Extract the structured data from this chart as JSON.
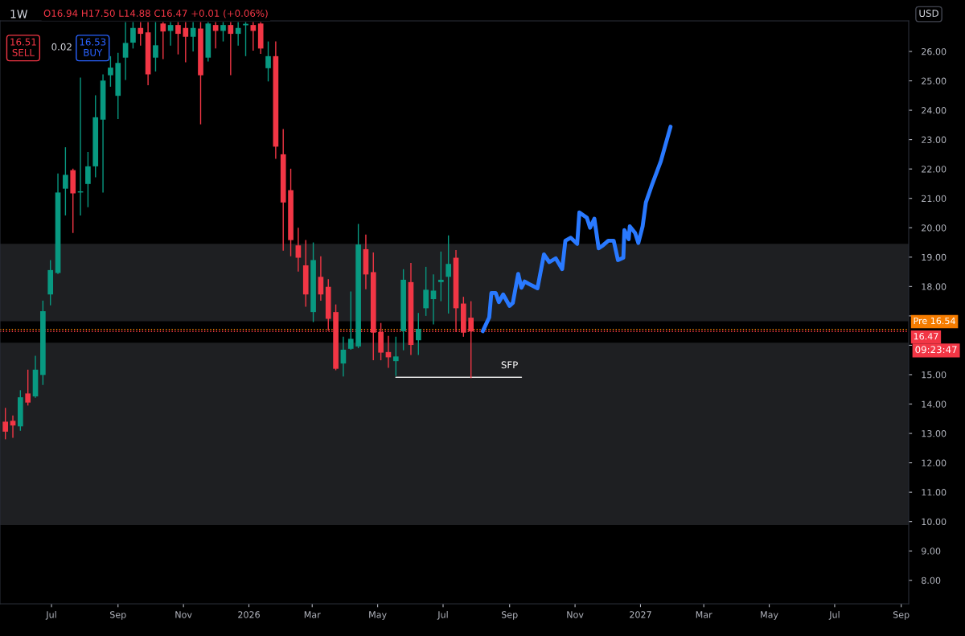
{
  "chart_data": {
    "type": "candlestick",
    "title": "1W",
    "annotations": [
      "O16.94 H17.50 L14.88 C16.47 +0.01 (+0.06%)",
      "16.51\nSELL",
      "0.02",
      "16.53\nBUY",
      "USD",
      "09:23:47",
      "SFP"
    ],
    "x": [
      "2025-05-19",
      "2025-05-26",
      "2025-06-02",
      "2025-06-09",
      "2025-06-16",
      "2025-06-23",
      "2025-06-30",
      "2025-07-07",
      "2025-07-14",
      "2025-07-21",
      "2025-07-28",
      "2025-08-04",
      "2025-08-11",
      "2025-08-18",
      "2025-08-25",
      "2025-09-01",
      "2025-09-08",
      "2025-09-15",
      "2025-09-22",
      "2025-09-29",
      "2025-10-06",
      "2025-10-13",
      "2025-10-20",
      "2025-10-27",
      "2025-11-03",
      "2025-11-10",
      "2025-11-17",
      "2025-11-24",
      "2025-12-01",
      "2025-12-08",
      "2025-12-15",
      "2025-12-22",
      "2025-12-29",
      "2026-01-05",
      "2026-01-12",
      "2026-01-19",
      "2026-01-26",
      "2026-02-02",
      "2026-02-09",
      "2026-02-16",
      "2026-02-23",
      "2026-03-02",
      "2026-03-09",
      "2026-03-16",
      "2026-03-23",
      "2026-03-30",
      "2026-04-06",
      "2026-04-13",
      "2026-04-20",
      "2026-04-27",
      "2026-05-04",
      "2026-05-11",
      "2026-05-18",
      "2026-05-25",
      "2026-06-01",
      "2026-06-08",
      "2026-06-15",
      "2026-06-22",
      "2026-06-29",
      "2026-07-06",
      "2026-07-13",
      "2026-07-20",
      "2026-07-27"
    ],
    "ohlc": [
      [
        13.4,
        13.87,
        12.8,
        13.06
      ],
      [
        13.43,
        13.61,
        12.85,
        13.27
      ],
      [
        13.24,
        14.47,
        13.09,
        14.23
      ],
      [
        14.36,
        15.17,
        13.95,
        14.05
      ],
      [
        14.26,
        15.64,
        14.21,
        15.17
      ],
      [
        14.99,
        17.52,
        14.65,
        17.16
      ],
      [
        17.73,
        18.9,
        17.36,
        18.56
      ],
      [
        18.46,
        21.85,
        18.43,
        21.2
      ],
      [
        21.33,
        22.74,
        20.42,
        21.8
      ],
      [
        21.96,
        22.01,
        19.82,
        21.17
      ],
      [
        21.2,
        25.11,
        20.42,
        21.24
      ],
      [
        21.49,
        22.58,
        20.7,
        22.09
      ],
      [
        22.09,
        24.51,
        21.72,
        23.76
      ],
      [
        23.68,
        25.22,
        21.2,
        25.01
      ],
      [
        25.19,
        25.84,
        24.8,
        25.45
      ],
      [
        24.49,
        25.95,
        23.7,
        25.61
      ],
      [
        25.79,
        27.0,
        25.03,
        26.29
      ],
      [
        26.3,
        27.0,
        26.1,
        26.8
      ],
      [
        26.8,
        27.0,
        26.2,
        26.6
      ],
      [
        26.65,
        27.0,
        24.85,
        25.22
      ],
      [
        25.79,
        27.0,
        25.32,
        26.21
      ],
      [
        26.95,
        27.0,
        25.74,
        26.68
      ],
      [
        26.7,
        27.0,
        26.2,
        26.9
      ],
      [
        26.9,
        27.0,
        25.9,
        26.6
      ],
      [
        26.8,
        27.0,
        25.63,
        26.5
      ],
      [
        26.5,
        27.0,
        26.0,
        26.8
      ],
      [
        26.78,
        27.0,
        23.52,
        25.19
      ],
      [
        25.79,
        27.0,
        25.66,
        26.95
      ],
      [
        26.9,
        27.0,
        26.1,
        26.7
      ],
      [
        26.7,
        27.0,
        26.34,
        26.9
      ],
      [
        26.9,
        27.0,
        25.19,
        26.6
      ],
      [
        26.6,
        27.0,
        26.2,
        26.8
      ],
      [
        26.89,
        27.0,
        25.84,
        26.94
      ],
      [
        26.9,
        27.0,
        26.03,
        26.7
      ],
      [
        26.95,
        27.0,
        25.92,
        26.1
      ],
      [
        25.43,
        26.34,
        24.98,
        25.84
      ],
      [
        25.84,
        26.34,
        22.35,
        22.76
      ],
      [
        22.5,
        23.36,
        19.22,
        20.86
      ],
      [
        21.28,
        22.01,
        19.03,
        19.58
      ],
      [
        19.4,
        20.0,
        18.51,
        18.98
      ],
      [
        18.72,
        19.58,
        17.31,
        17.73
      ],
      [
        17.13,
        19.5,
        16.79,
        18.9
      ],
      [
        18.33,
        19.03,
        17.52,
        17.73
      ],
      [
        17.99,
        18.25,
        16.5,
        16.9
      ],
      [
        17.13,
        17.39,
        15.15,
        15.2
      ],
      [
        15.38,
        16.29,
        14.94,
        15.85
      ],
      [
        15.88,
        17.83,
        15.85,
        16.22
      ],
      [
        15.96,
        20.13,
        15.9,
        19.43
      ],
      [
        19.27,
        19.77,
        17.91,
        18.41
      ],
      [
        18.49,
        19.16,
        15.49,
        16.43
      ],
      [
        16.45,
        16.76,
        15.49,
        15.75
      ],
      [
        15.77,
        16.32,
        15.23,
        15.59
      ],
      [
        15.46,
        16.29,
        14.96,
        15.62
      ],
      [
        16.48,
        18.59,
        15.83,
        18.23
      ],
      [
        18.15,
        18.8,
        15.67,
        16.01
      ],
      [
        16.17,
        17.1,
        15.67,
        16.56
      ],
      [
        17.26,
        18.67,
        17.0,
        17.89
      ],
      [
        17.57,
        18.41,
        16.71,
        17.86
      ],
      [
        18.15,
        19.19,
        17.5,
        18.23
      ],
      [
        18.33,
        19.74,
        17.08,
        18.77
      ],
      [
        18.98,
        19.24,
        16.45,
        17.26
      ],
      [
        17.42,
        17.65,
        16.29,
        16.43
      ],
      [
        16.94,
        17.5,
        14.88,
        16.47
      ]
    ],
    "colors": [
      "#f23645",
      "#f23645",
      "#089981",
      "#f23645",
      "#089981",
      "#089981",
      "#089981",
      "#089981",
      "#089981",
      "#f23645",
      "#089981",
      "#089981",
      "#089981",
      "#089981",
      "#089981",
      "#089981",
      "#089981",
      "#089981",
      "#f23645",
      "#f23645",
      "#089981",
      "#f23645",
      "#089981",
      "#f23645",
      "#f23645",
      "#089981",
      "#f23645",
      "#089981",
      "#f23645",
      "#089981",
      "#f23645",
      "#089981",
      "#089981",
      "#f23645",
      "#f23645",
      "#089981",
      "#f23645",
      "#f23645",
      "#f23645",
      "#f23645",
      "#f23645",
      "#089981",
      "#f23645",
      "#f23645",
      "#f23645",
      "#089981",
      "#089981",
      "#089981",
      "#f23645",
      "#f23645",
      "#f23645",
      "#f23645",
      "#089981",
      "#089981",
      "#f23645",
      "#089981",
      "#089981",
      "#089981",
      "#089981",
      "#089981",
      "#f23645",
      "#f23645",
      "#f23645"
    ],
    "series": [
      {
        "type": "line",
        "color": "#2979ff",
        "x": [
          "2026-08-07",
          "2026-08-13",
          "2026-08-15",
          "2026-08-19",
          "2026-08-22",
          "2026-08-26",
          "2026-09-01",
          "2026-09-04",
          "2026-09-09",
          "2026-09-12",
          "2026-09-15",
          "2026-09-19",
          "2026-09-27",
          "2026-10-03",
          "2026-10-08",
          "2026-10-14",
          "2026-10-20",
          "2026-10-23",
          "2026-10-28",
          "2026-11-03",
          "2026-11-05",
          "2026-11-12",
          "2026-11-15",
          "2026-11-19",
          "2026-11-23",
          "2026-11-27",
          "2026-12-02",
          "2026-12-07",
          "2026-12-11",
          "2026-12-16",
          "2026-12-17",
          "2026-12-21",
          "2026-12-22",
          "2026-12-27",
          "2026-12-30",
          "2027-01-03",
          "2027-01-06",
          "2027-01-12",
          "2027-01-20",
          "2027-01-29"
        ],
        "values": [
          16.48,
          16.95,
          17.78,
          17.78,
          17.47,
          17.73,
          17.34,
          17.44,
          18.43,
          17.96,
          18.17,
          18.09,
          17.94,
          19.09,
          18.83,
          18.96,
          18.59,
          19.56,
          19.66,
          19.45,
          20.52,
          20.34,
          20.0,
          20.31,
          19.3,
          19.4,
          19.56,
          19.56,
          18.9,
          18.98,
          19.92,
          19.61,
          20.05,
          19.82,
          19.48,
          20.05,
          20.86,
          21.49,
          22.27,
          23.44
        ]
      },
      {
        "type": "line",
        "color": "#e0e0e0",
        "x": [
          "2026-05-18",
          "2026-09-12"
        ],
        "values": [
          14.91,
          14.91
        ]
      }
    ],
    "bands": [
      {
        "axis": "y",
        "from": 9.88,
        "to": 16.09,
        "color": "#1e1f22"
      },
      {
        "axis": "y",
        "from": 16.82,
        "to": 19.45,
        "color": "#1e1f22"
      }
    ],
    "ref_lines": [
      {
        "axis": "y",
        "value": 16.54,
        "label": "Pre 16.54",
        "color": "#f57c00",
        "line_style": "dotted"
      },
      {
        "axis": "y",
        "value": 16.47,
        "label": "16.47",
        "color": "#f23645",
        "line_style": "dotted"
      }
    ],
    "xlim": [
      "2025-05-14",
      "2027-09-08"
    ],
    "xticks": [
      {
        "value": "2025-07-01",
        "label": "Jul"
      },
      {
        "value": "2025-09-01",
        "label": "Sep"
      },
      {
        "value": "2025-11-01",
        "label": "Nov"
      },
      {
        "value": "2026-01-01",
        "label": "2026"
      },
      {
        "value": "2026-03-01",
        "label": "Mar"
      },
      {
        "value": "2026-05-01",
        "label": "May"
      },
      {
        "value": "2026-07-01",
        "label": "Jul"
      },
      {
        "value": "2026-09-01",
        "label": "Sep"
      },
      {
        "value": "2026-11-01",
        "label": "Nov"
      },
      {
        "value": "2027-01-01",
        "label": "2027"
      },
      {
        "value": "2027-03-01",
        "label": "Mar"
      },
      {
        "value": "2027-05-01",
        "label": "May"
      },
      {
        "value": "2027-07-01",
        "label": "Jul"
      },
      {
        "value": "2027-09-01",
        "label": "Sep"
      }
    ],
    "ylim": [
      7.2,
      27.04
    ],
    "yticks": [
      {
        "value": 8,
        "label": "8.00"
      },
      {
        "value": 9,
        "label": "9.00"
      },
      {
        "value": 10,
        "label": "10.00"
      },
      {
        "value": 11,
        "label": "11.00"
      },
      {
        "value": 12,
        "label": "12.00"
      },
      {
        "value": 13,
        "label": "13.00"
      },
      {
        "value": 14,
        "label": "14.00"
      },
      {
        "value": 15,
        "label": "15.00"
      },
      {
        "value": 16,
        "label": null
      },
      {
        "value": 17,
        "label": null
      },
      {
        "value": 18,
        "label": "18.00"
      },
      {
        "value": 19,
        "label": "19.00"
      },
      {
        "value": 20,
        "label": "20.00"
      },
      {
        "value": 21,
        "label": "21.00"
      },
      {
        "value": 22,
        "label": "22.00"
      },
      {
        "value": 23,
        "label": "23.00"
      },
      {
        "value": 24,
        "label": "24.00"
      },
      {
        "value": 25,
        "label": "25.00"
      },
      {
        "value": 26,
        "label": "26.00"
      }
    ],
    "grid": false
  }
}
